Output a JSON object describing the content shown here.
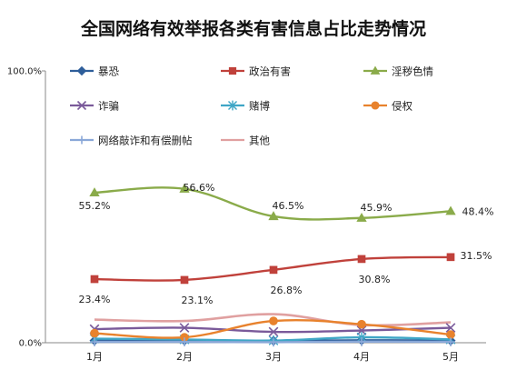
{
  "chart_data": {
    "type": "line",
    "title": "全国网络有效举报各类有害信息占比走势情况",
    "categories": [
      "1月",
      "2月",
      "3月",
      "4月",
      "5月"
    ],
    "y_tick_labels": [
      "100.0%",
      "0.0%"
    ],
    "ylim": [
      0,
      100
    ],
    "grid": false,
    "legend": "top",
    "series": [
      {
        "name": "暴恐",
        "color": "#2e5e9a",
        "marker": "diamond",
        "values": [
          0.8,
          0.8,
          0.7,
          0.9,
          0.8
        ]
      },
      {
        "name": "政治有害",
        "color": "#c0413b",
        "marker": "square",
        "values": [
          23.4,
          23.1,
          26.8,
          30.8,
          31.5
        ],
        "data_labels": [
          "23.4%",
          "23.1%",
          "26.8%",
          "30.8%",
          "31.5%"
        ]
      },
      {
        "name": "淫秽色情",
        "color": "#8aab4a",
        "marker": "triangle",
        "values": [
          55.2,
          56.6,
          46.5,
          45.9,
          48.4
        ],
        "data_labels": [
          "55.2%",
          "56.6%",
          "46.5%",
          "45.9%",
          "48.4%"
        ]
      },
      {
        "name": "诈骗",
        "color": "#7a5a9a",
        "marker": "x",
        "values": [
          5.0,
          5.5,
          4.0,
          4.5,
          5.5
        ]
      },
      {
        "name": "赌博",
        "color": "#3fa6c6",
        "marker": "star",
        "values": [
          1.5,
          1.2,
          0.8,
          2.0,
          1.2
        ]
      },
      {
        "name": "侵权",
        "color": "#e8822d",
        "marker": "circle",
        "values": [
          3.5,
          2.0,
          8.0,
          6.8,
          3.0
        ]
      },
      {
        "name": "网络敲诈和有偿删帖",
        "color": "#8aa8d8",
        "marker": "plus",
        "values": [
          0.3,
          0.3,
          0.2,
          0.4,
          0.3
        ]
      },
      {
        "name": "其他",
        "color": "#e0a0a0",
        "marker": "none",
        "values": [
          8.5,
          8.0,
          10.5,
          6.5,
          7.5
        ]
      }
    ]
  }
}
